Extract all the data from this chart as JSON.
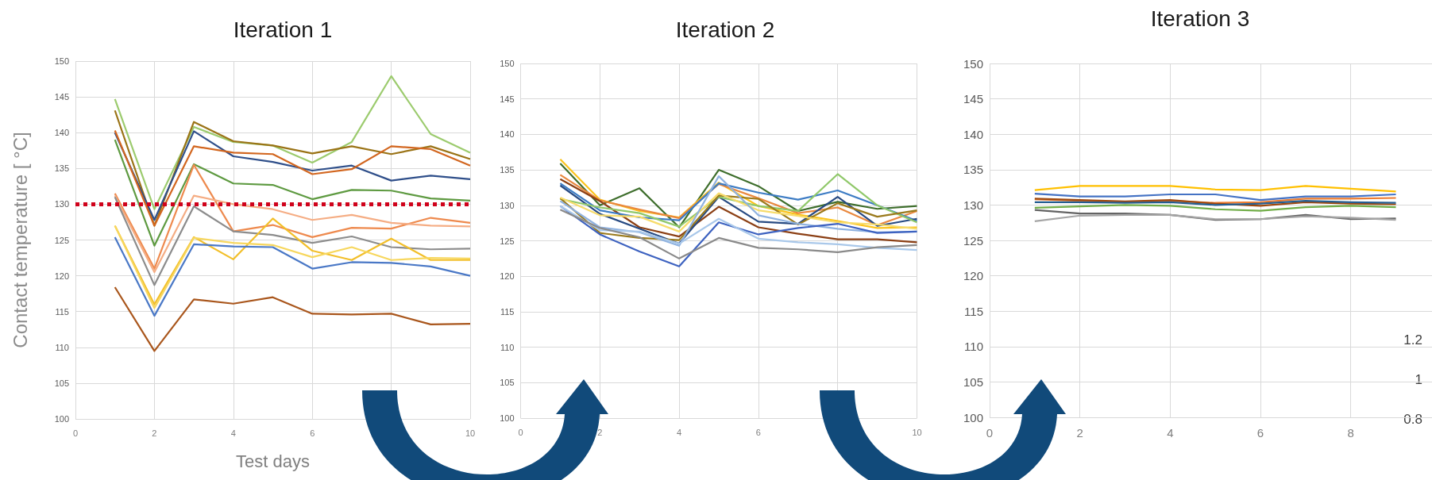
{
  "chart_data": [
    {
      "type": "line",
      "title": "Iteration 1",
      "xlabel": "Test days",
      "ylabel": "Contact temperature [ °C]",
      "x": [
        1,
        2,
        3,
        4,
        5,
        6,
        7,
        8,
        9,
        10
      ],
      "xlim": [
        0,
        10
      ],
      "xticks": [
        0,
        2,
        4,
        6,
        {
          "value": 8,
          "label": null
        },
        10
      ],
      "ylim": [
        100,
        150
      ],
      "yticks": [
        100,
        105,
        110,
        115,
        120,
        125,
        130,
        135,
        140,
        145,
        150
      ],
      "grid": true,
      "marker": "none",
      "line_style": "solid",
      "ref_lines": [
        {
          "axis": "y",
          "value": 130,
          "color": "#d0021b",
          "line_style": "dotted"
        }
      ],
      "series": [
        {
          "color": "#9ccb6e",
          "values": [
            144.7,
            129.3,
            140.8,
            138.7,
            138.2,
            135.8,
            138.7,
            147.9,
            139.8,
            137.2
          ]
        },
        {
          "color": "#9a7316",
          "values": [
            143.1,
            127,
            141.5,
            138.8,
            138.2,
            137.1,
            138.1,
            137,
            138.1,
            136.3
          ]
        },
        {
          "color": "#2f4f8a",
          "values": [
            140,
            127.8,
            140.2,
            136.7,
            135.9,
            134.7,
            135.4,
            133.3,
            134,
            133.5
          ]
        },
        {
          "color": "#d2661f",
          "values": [
            140.3,
            127,
            138.1,
            137.2,
            137,
            134.2,
            134.9,
            138.1,
            137.7,
            135.4
          ]
        },
        {
          "color": "#5e9a41",
          "values": [
            139,
            124.2,
            135.6,
            132.9,
            132.7,
            130.7,
            132,
            131.9,
            130.8,
            130.5
          ]
        },
        {
          "color": "#ee8a4e",
          "values": [
            131.5,
            121,
            135.5,
            126.2,
            127.1,
            125.4,
            126.7,
            126.6,
            128.1,
            127.4
          ]
        },
        {
          "color": "#f5ad84",
          "values": [
            131.2,
            120.5,
            131.2,
            130,
            129.3,
            127.8,
            128.5,
            127.4,
            127,
            126.9
          ]
        },
        {
          "color": "#8c8c8c",
          "values": [
            131,
            118.7,
            129.7,
            126.2,
            125.7,
            124.6,
            125.5,
            124,
            123.7,
            123.8
          ]
        },
        {
          "color": "#f2bf2a",
          "values": [
            127,
            116,
            125.4,
            122.3,
            128,
            123.5,
            122.2,
            125.2,
            122.2,
            122.2
          ]
        },
        {
          "color": "#f7d75e",
          "values": [
            127,
            115.5,
            125.3,
            124.6,
            124.3,
            122.6,
            124,
            122.2,
            122.5,
            122.4
          ]
        },
        {
          "color": "#4a78c6",
          "values": [
            125.4,
            114.4,
            124.4,
            124.1,
            124,
            121,
            121.9,
            121.8,
            121.3,
            120
          ]
        },
        {
          "color": "#a9561c",
          "values": [
            118.4,
            109.5,
            116.7,
            116.1,
            117,
            114.7,
            114.6,
            114.7,
            113.2,
            113.3
          ]
        }
      ]
    },
    {
      "type": "line",
      "title": "Iteration 2",
      "x": [
        1,
        2,
        3,
        4,
        5,
        6,
        7,
        8,
        9,
        10
      ],
      "xlim": [
        0,
        10
      ],
      "xticks": [
        0,
        2,
        4,
        6,
        {
          "value": 8,
          "label": null
        },
        10
      ],
      "ylim": [
        100,
        150
      ],
      "yticks": [
        100,
        105,
        110,
        115,
        120,
        125,
        130,
        135,
        140,
        145,
        150
      ],
      "grid": true,
      "marker": "none",
      "line_style": "solid",
      "series": [
        {
          "color": "#3e6e2c",
          "values": [
            135.9,
            130,
            132.4,
            126.9,
            135,
            132.7,
            129.2,
            130.5,
            129.5,
            129.9
          ]
        },
        {
          "color": "#fbc31c",
          "values": [
            136.5,
            130.8,
            129.2,
            128.3,
            133.2,
            129.9,
            128.7,
            127.8,
            126.8,
            126.9
          ]
        },
        {
          "color": "#e9883e",
          "values": [
            134.3,
            130.7,
            129.4,
            128.2,
            133,
            131,
            128.9,
            129.7,
            127.2,
            129.2
          ]
        },
        {
          "color": "#8b3f14",
          "values": [
            133.7,
            130.6,
            126.9,
            125.6,
            129.8,
            126.9,
            126,
            125.2,
            125.2,
            124.8
          ]
        },
        {
          "color": "#3d7cc4",
          "values": [
            133.1,
            129.3,
            128.3,
            127.9,
            133.1,
            131.8,
            130.8,
            132.1,
            130,
            127.8
          ]
        },
        {
          "color": "#274a82",
          "values": [
            132.8,
            128.8,
            126.7,
            124.6,
            131.2,
            127.7,
            127.4,
            131.2,
            127.1,
            128.1
          ]
        },
        {
          "color": "#90c86a",
          "values": [
            130.9,
            129.7,
            128.9,
            127,
            131.2,
            129.9,
            129.2,
            134.4,
            130,
            127.6
          ]
        },
        {
          "color": "#9a7a1c",
          "values": [
            131,
            126.1,
            125.4,
            125.1,
            131.4,
            130.9,
            127.3,
            130.3,
            128.4,
            129.3
          ]
        },
        {
          "color": "#f7dc6c",
          "values": [
            131.1,
            128.6,
            128.4,
            126.3,
            131.7,
            129.3,
            128.5,
            127.6,
            127.3,
            126.7
          ]
        },
        {
          "color": "#8fb2e0",
          "values": [
            130.6,
            126.9,
            126.2,
            124.3,
            134.1,
            128.6,
            127.4,
            126.7,
            126.2,
            126.3
          ]
        },
        {
          "color": "#3d62c0",
          "values": [
            129.9,
            125.9,
            123.5,
            121.4,
            127.6,
            125.9,
            126.8,
            127.4,
            126.1,
            126.3
          ]
        },
        {
          "color": "#a9c8ea",
          "values": [
            129.9,
            126.5,
            126.3,
            124.6,
            128.1,
            125.3,
            124.8,
            124.5,
            124,
            123.7
          ]
        },
        {
          "color": "#8a8a8a",
          "values": [
            129.4,
            126.8,
            125.5,
            122.5,
            125.4,
            124,
            123.8,
            123.4,
            124.1,
            124.4
          ]
        }
      ]
    },
    {
      "type": "line",
      "title": "Iteration 3",
      "x": [
        1,
        2,
        3,
        4,
        5,
        6,
        7,
        8,
        9
      ],
      "xlim": [
        0,
        9.8
      ],
      "xticks": [
        0,
        2,
        4,
        6,
        8
      ],
      "ylim": [
        100,
        150
      ],
      "yticks": [
        100,
        105,
        110,
        115,
        120,
        125,
        130,
        135,
        140,
        145,
        150
      ],
      "grid": true,
      "marker": "none",
      "line_style": "solid",
      "annotations": [
        "1.2",
        "1",
        "0.8"
      ],
      "series": [
        {
          "color": "#ffc000",
          "values": [
            132.1,
            132.7,
            132.7,
            132.7,
            132.2,
            132.1,
            132.7,
            132.3,
            131.9
          ]
        },
        {
          "color": "#4472c4",
          "values": [
            131.6,
            131.2,
            131.2,
            131.5,
            131.5,
            130.7,
            131.2,
            131.2,
            131.5
          ]
        },
        {
          "color": "#ed7d31",
          "values": [
            130.8,
            130.6,
            130.4,
            130.6,
            130.3,
            130.4,
            130.9,
            130.9,
            131
          ]
        },
        {
          "color": "#9e480e",
          "values": [
            130.9,
            130.7,
            130.5,
            130.7,
            130.2,
            129.9,
            130.4,
            130.2,
            130.1
          ]
        },
        {
          "color": "#255e91",
          "values": [
            130.4,
            130.4,
            130.3,
            130.4,
            130,
            130.2,
            130.6,
            130.4,
            130.3
          ]
        },
        {
          "color": "#70ad47",
          "values": [
            129.6,
            129.8,
            130,
            129.9,
            129.4,
            129.2,
            129.7,
            129.9,
            129.7
          ]
        },
        {
          "color": "#636363",
          "values": [
            129.3,
            128.8,
            128.8,
            128.6,
            127.9,
            128,
            128.6,
            128,
            128.1
          ]
        },
        {
          "color": "#a5a5a5",
          "values": [
            127.7,
            128.5,
            128.6,
            128.6,
            128,
            128,
            128.4,
            128.2,
            127.9
          ]
        }
      ]
    }
  ]
}
